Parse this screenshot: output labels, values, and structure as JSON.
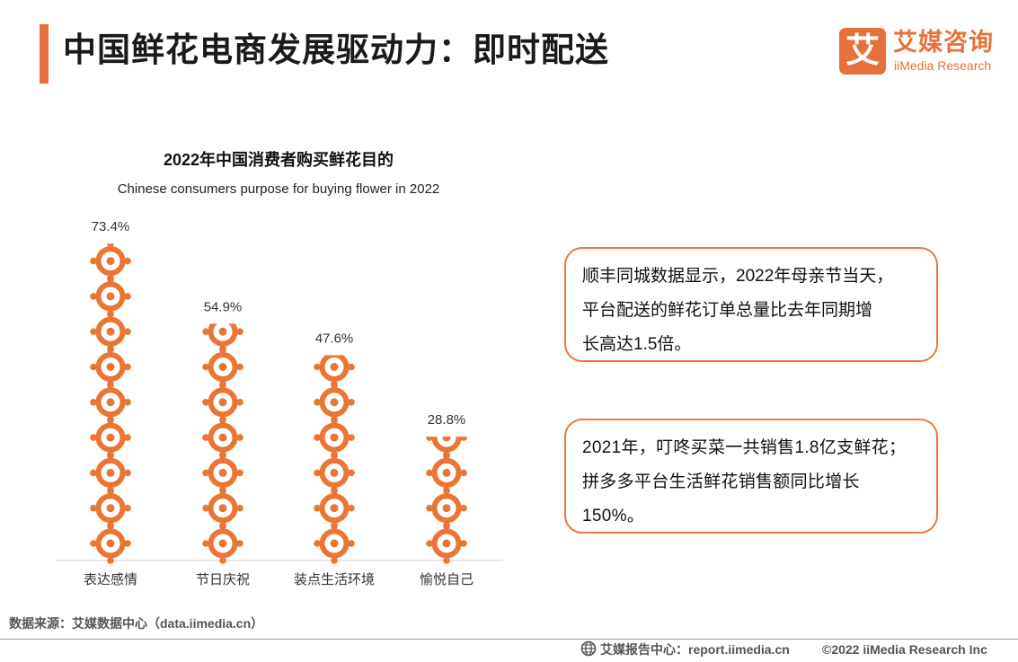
{
  "colors": {
    "accent": "#e8703a",
    "flower_outer": "#ea7635",
    "flower_inner": "#ffffff",
    "axis": "#cccccc"
  },
  "header": {
    "title": "中国鲜花电商发展驱动力：即时配送"
  },
  "logo": {
    "mark": "艾",
    "cn": "艾媒咨询",
    "en": "iiMedia Research",
    "icon": "iimedia-logo-icon"
  },
  "chart_data": {
    "type": "bar",
    "title": "2022年中国消费者购买鲜花目的",
    "subtitle": "Chinese consumers purpose for buying flower in 2022",
    "categories": [
      "表达感情",
      "节日庆祝",
      "装点生活环境",
      "愉悦自己"
    ],
    "values": [
      73.4,
      54.9,
      47.6,
      28.8
    ],
    "value_labels": [
      "73.4%",
      "54.9%",
      "47.6%",
      "28.8%"
    ],
    "unit": "%",
    "grid": false,
    "legend": "none",
    "mark_style": "pictograph"
  },
  "callouts": [
    {
      "lines": [
        "顺丰同城数据显示，2022年母亲节当天，",
        "平台配送的鲜花订单总量比去年同期增",
        "长高达1.5倍。"
      ]
    },
    {
      "lines": [
        "2021年，叮咚买菜一共销售1.8亿支鲜花；",
        "拼多多平台生活鲜花销售额同比增长",
        "150%。"
      ]
    }
  ],
  "source": "数据来源：艾媒数据中心（data.iimedia.cn）",
  "footer": {
    "left": "艾媒报告中心：report.iimedia.cn",
    "right": "©2022 iiMedia Research Inc",
    "icon": "globe-icon"
  }
}
